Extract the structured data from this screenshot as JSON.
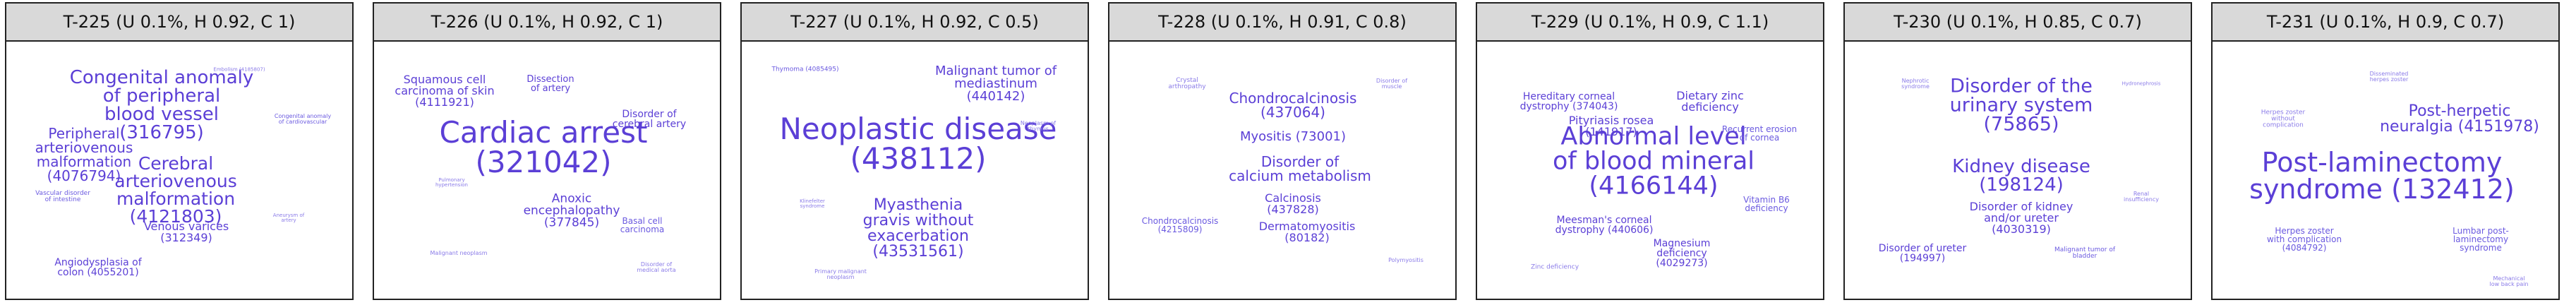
{
  "chart_data": [
    {
      "type": "wordcloud",
      "title": "T-225 (U 0.1%, H 0.92, C 1)",
      "words": [
        {
          "text": "Congenital anomaly\nof peripheral\nblood vessel\n(316795)",
          "size": 1.0,
          "color": "#5b3fd6"
        },
        {
          "text": "Peripheral\narteriovenous\nmalformation\n(4076794)",
          "size": 0.78,
          "color": "#5b3fd6"
        },
        {
          "text": "Cerebral\narteriovenous\nmalformation\n(4121803)",
          "size": 0.95,
          "color": "#5b3fd6"
        },
        {
          "text": "Venous varices\n(312349)",
          "size": 0.62,
          "color": "#5b3fd6"
        },
        {
          "text": "Angiodysplasia of\ncolon (4055201)",
          "size": 0.55,
          "color": "#5b3fd6"
        },
        {
          "text": "Vascular disorder\nof intestine",
          "size": 0.35,
          "color": "#6b5ae0"
        },
        {
          "text": "Congenital anomaly\nof cardiovascular",
          "size": 0.3,
          "color": "#6b5ae0"
        },
        {
          "text": "Embolism (4185807)",
          "size": 0.25,
          "color": "#8a7be8"
        },
        {
          "text": "Aneurysm of\nartery",
          "size": 0.25,
          "color": "#8a7be8"
        }
      ]
    },
    {
      "type": "wordcloud",
      "title": "T-226 (U 0.1%, H 0.92, C 1)",
      "words": [
        {
          "text": "Cardiac arrest\n(321042)",
          "size": 1.6,
          "color": "#5b3fd6"
        },
        {
          "text": "Squamous cell\ncarcinoma of skin\n(4111921)",
          "size": 0.6,
          "color": "#5b3fd6"
        },
        {
          "text": "Disorder of\ncerebral artery",
          "size": 0.55,
          "color": "#5b3fd6"
        },
        {
          "text": "Dissection\nof artery",
          "size": 0.5,
          "color": "#5b3fd6"
        },
        {
          "text": "Anoxic\nencephalopathy\n(377845)",
          "size": 0.65,
          "color": "#5b3fd6"
        },
        {
          "text": "Basal cell\ncarcinoma",
          "size": 0.45,
          "color": "#6b5ae0"
        },
        {
          "text": "Malignant neoplasm",
          "size": 0.3,
          "color": "#8a7be8"
        },
        {
          "text": "Disorder of\nmedical aorta",
          "size": 0.3,
          "color": "#8a7be8"
        },
        {
          "text": "Pulmonary\nhypertension",
          "size": 0.28,
          "color": "#8a7be8"
        }
      ]
    },
    {
      "type": "wordcloud",
      "title": "T-227 (U 0.1%, H 0.92, C 0.5)",
      "words": [
        {
          "text": "Neoplastic disease\n(438112)",
          "size": 1.6,
          "color": "#5b3fd6"
        },
        {
          "text": "Malignant tumor of\nmediastinum\n(440142)",
          "size": 0.7,
          "color": "#5b3fd6"
        },
        {
          "text": "Myasthenia\ngravis without\nexacerbation\n(43531561)",
          "size": 0.85,
          "color": "#5b3fd6"
        },
        {
          "text": "Thymoma (4085495)",
          "size": 0.35,
          "color": "#6b5ae0"
        },
        {
          "text": "Neoplasm of\nthymus",
          "size": 0.3,
          "color": "#8a7be8"
        },
        {
          "text": "Primary malignant\nneoplasm",
          "size": 0.3,
          "color": "#8a7be8"
        },
        {
          "text": "Klinefelter\nsyndrome",
          "size": 0.28,
          "color": "#8a7be8"
        }
      ]
    },
    {
      "type": "wordcloud",
      "title": "T-228 (U 0.1%, H 0.91, C 0.8)",
      "words": [
        {
          "text": "Chondrocalcinosis\n(437064)",
          "size": 0.75,
          "color": "#5b3fd6"
        },
        {
          "text": "Myositis (73001)",
          "size": 0.7,
          "color": "#5b3fd6"
        },
        {
          "text": "Disorder of\ncalcium metabolism",
          "size": 0.75,
          "color": "#5b3fd6"
        },
        {
          "text": "Calcinosis\n(437828)",
          "size": 0.6,
          "color": "#5b3fd6"
        },
        {
          "text": "Dermatomyositis\n(80182)",
          "size": 0.6,
          "color": "#5b3fd6"
        },
        {
          "text": "Chondrocalcinosis\n(4215809)",
          "size": 0.45,
          "color": "#6b5ae0"
        },
        {
          "text": "Crystal\narthropathy",
          "size": 0.35,
          "color": "#8a7be8"
        },
        {
          "text": "Polymyositis",
          "size": 0.3,
          "color": "#8a7be8"
        },
        {
          "text": "Disorder of\nmuscle",
          "size": 0.3,
          "color": "#8a7be8"
        }
      ]
    },
    {
      "type": "wordcloud",
      "title": "T-229 (U 0.1%, H 0.9, C 1.1)",
      "words": [
        {
          "text": "Abnormal level\nof blood mineral\n(4166144)",
          "size": 1.35,
          "color": "#5b3fd6"
        },
        {
          "text": "Dietary zinc\ndeficiency",
          "size": 0.6,
          "color": "#5b3fd6"
        },
        {
          "text": "Hereditary corneal\ndystrophy (374043)",
          "size": 0.55,
          "color": "#5b3fd6"
        },
        {
          "text": "Pityriasis rosea\n(141917)",
          "size": 0.6,
          "color": "#5b3fd6"
        },
        {
          "text": "Recurrent erosion\nof cornea",
          "size": 0.45,
          "color": "#6b5ae0"
        },
        {
          "text": "Meesman's corneal\ndystrophy (440606)",
          "size": 0.55,
          "color": "#5b3fd6"
        },
        {
          "text": "Vitamin B6\ndeficiency",
          "size": 0.45,
          "color": "#6b5ae0"
        },
        {
          "text": "Magnesium\ndeficiency\n(4029273)",
          "size": 0.55,
          "color": "#5b3fd6"
        },
        {
          "text": "Zinc deficiency",
          "size": 0.35,
          "color": "#8a7be8"
        }
      ]
    },
    {
      "type": "wordcloud",
      "title": "T-230 (U 0.1%, H 0.85, C 0.7)",
      "words": [
        {
          "text": "Disorder of the\nurinary system\n(75865)",
          "size": 1.05,
          "color": "#5b3fd6"
        },
        {
          "text": "Kidney disease\n(198124)",
          "size": 1.0,
          "color": "#5b3fd6"
        },
        {
          "text": "Disorder of kidney\nand/or ureter\n(4030319)",
          "size": 0.6,
          "color": "#5b3fd6"
        },
        {
          "text": "Disorder of ureter\n(194997)",
          "size": 0.55,
          "color": "#5b3fd6"
        },
        {
          "text": "Malignant tumor of\nbladder",
          "size": 0.35,
          "color": "#6b5ae0"
        },
        {
          "text": "Renal\ninsufficiency",
          "size": 0.3,
          "color": "#8a7be8"
        },
        {
          "text": "Nephrotic\nsyndrome",
          "size": 0.3,
          "color": "#8a7be8"
        },
        {
          "text": "Hydronephrosis",
          "size": 0.28,
          "color": "#8a7be8"
        }
      ]
    },
    {
      "type": "wordcloud",
      "title": "T-231 (U 0.1%, H 0.9, C 0.7)",
      "words": [
        {
          "text": "Post-herpetic\nneuralgia (4151978)",
          "size": 0.85,
          "color": "#5b3fd6"
        },
        {
          "text": "Post-laminectomy\nsyndrome (132412)",
          "size": 1.45,
          "color": "#5b3fd6"
        },
        {
          "text": "Herpes zoster\nwith complication\n(4084792)",
          "size": 0.45,
          "color": "#6b5ae0"
        },
        {
          "text": "Lumbar post-\nlaminectomy\nsyndrome",
          "size": 0.45,
          "color": "#6b5ae0"
        },
        {
          "text": "Herpes zoster\nwithout\ncomplication",
          "size": 0.35,
          "color": "#8a7be8"
        },
        {
          "text": "Disseminated\nherpes zoster",
          "size": 0.3,
          "color": "#8a7be8"
        },
        {
          "text": "Mechanical\nlow back pain",
          "size": 0.3,
          "color": "#8a7be8"
        }
      ]
    }
  ]
}
